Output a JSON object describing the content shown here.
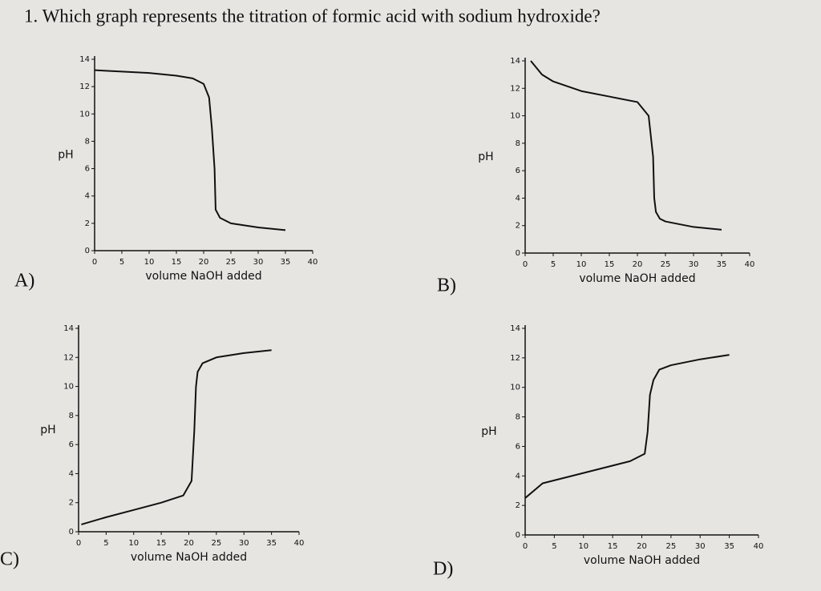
{
  "question": "1. Which graph represents the titration of formic acid with sodium hydroxide?",
  "chart_data": [
    {
      "type": "line",
      "option": "A)",
      "xlabel": "volume NaOH added",
      "ylabel": "pH",
      "xlim": [
        0,
        40
      ],
      "ylim": [
        0,
        14
      ],
      "xticks": [
        0,
        5,
        10,
        15,
        20,
        25,
        30,
        35,
        40
      ],
      "yticks": [
        0,
        2,
        4,
        6,
        8,
        10,
        12,
        14
      ],
      "series": [
        {
          "color": "#111111",
          "x": [
            0,
            5,
            10,
            15,
            18,
            20,
            21,
            21.5,
            22,
            22.2,
            23,
            25,
            30,
            35
          ],
          "values": [
            13.2,
            13.1,
            13.0,
            12.8,
            12.6,
            12.2,
            11.2,
            9,
            6,
            3,
            2.4,
            2.0,
            1.7,
            1.5
          ]
        }
      ]
    },
    {
      "type": "line",
      "option": "B)",
      "xlabel": "volume NaOH added",
      "ylabel": "pH",
      "xlim": [
        0,
        40
      ],
      "ylim": [
        0,
        14
      ],
      "xticks": [
        0,
        5,
        10,
        15,
        20,
        25,
        30,
        35,
        40
      ],
      "yticks": [
        0,
        2,
        4,
        6,
        8,
        10,
        12,
        14
      ],
      "series": [
        {
          "color": "#111111",
          "x": [
            1,
            3,
            5,
            10,
            15,
            20,
            22,
            22.8,
            23,
            23.3,
            24,
            25,
            30,
            35
          ],
          "values": [
            14,
            13,
            12.5,
            11.8,
            11.4,
            11,
            10,
            7,
            4,
            3,
            2.5,
            2.3,
            1.9,
            1.7
          ]
        }
      ]
    },
    {
      "type": "line",
      "option": "C)",
      "xlabel": "volume NaOH added",
      "ylabel": "pH",
      "xlim": [
        0,
        40
      ],
      "ylim": [
        0,
        14
      ],
      "xticks": [
        0,
        5,
        10,
        15,
        20,
        25,
        30,
        35,
        40
      ],
      "yticks": [
        0,
        2,
        4,
        6,
        8,
        10,
        12,
        14
      ],
      "series": [
        {
          "color": "#111111",
          "x": [
            0.5,
            5,
            10,
            15,
            19,
            20.5,
            21,
            21.3,
            21.6,
            22.5,
            25,
            30,
            35
          ],
          "values": [
            0.5,
            1.0,
            1.5,
            2.0,
            2.5,
            3.5,
            7,
            10,
            11,
            11.6,
            12.0,
            12.3,
            12.5
          ]
        }
      ]
    },
    {
      "type": "line",
      "option": "D)",
      "xlabel": "volume NaOH added",
      "ylabel": "pH",
      "xlim": [
        0,
        40
      ],
      "ylim": [
        0,
        14
      ],
      "xticks": [
        0,
        5,
        10,
        15,
        20,
        25,
        30,
        35,
        40
      ],
      "yticks": [
        0,
        2,
        4,
        6,
        8,
        10,
        12,
        14
      ],
      "series": [
        {
          "color": "#111111",
          "x": [
            0,
            3,
            10,
            18,
            20.5,
            21,
            21.4,
            22,
            23,
            25,
            30,
            35
          ],
          "values": [
            2.5,
            3.5,
            4.2,
            5.0,
            5.5,
            7,
            9.5,
            10.5,
            11.2,
            11.5,
            11.9,
            12.2
          ]
        }
      ]
    }
  ]
}
